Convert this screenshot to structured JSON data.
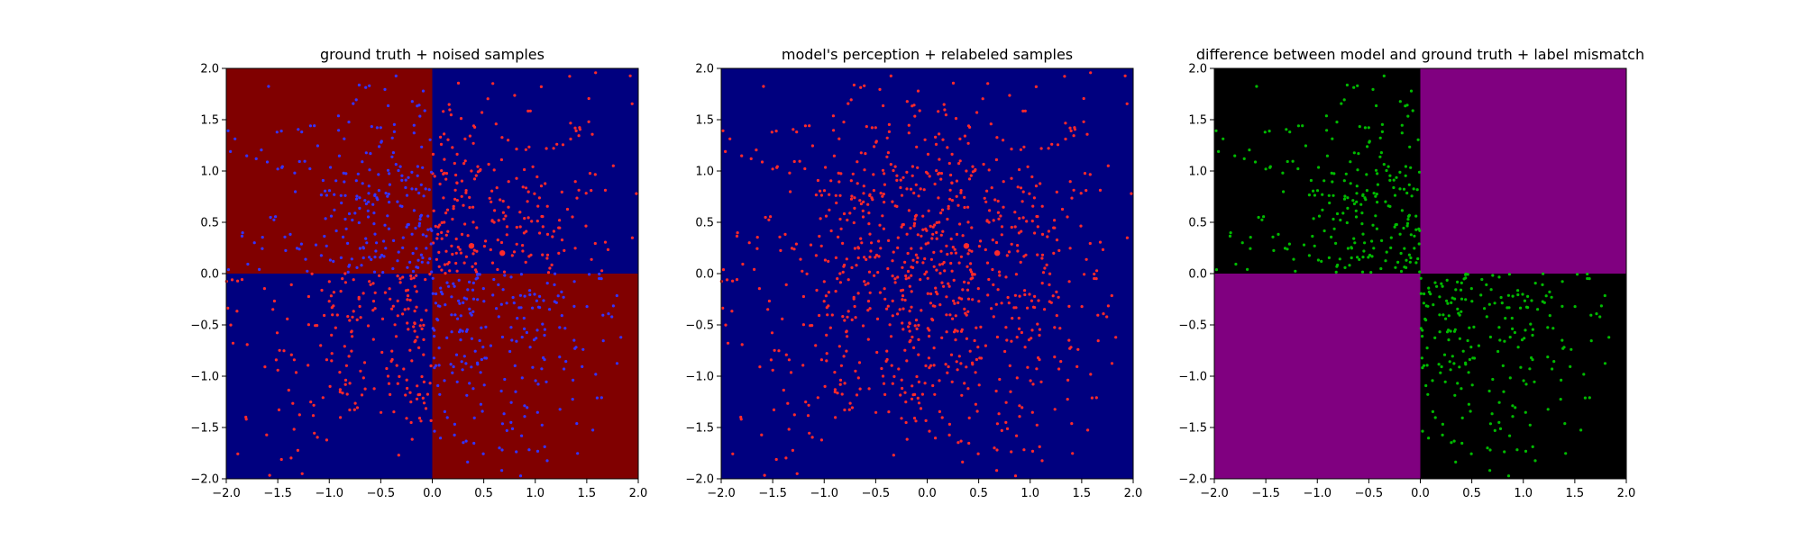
{
  "chart_data": [
    {
      "type": "heatmap",
      "title": "ground truth + noised samples",
      "xlim": [
        -2.0,
        2.0
      ],
      "ylim": [
        -2.0,
        2.0
      ],
      "xticks": [
        "−2.0",
        "−1.5",
        "−1.0",
        "−0.5",
        "0.0",
        "0.5",
        "1.0",
        "1.5",
        "2.0"
      ],
      "yticks": [
        "−2.0",
        "−1.5",
        "−1.0",
        "−0.5",
        "0.0",
        "0.5",
        "1.0",
        "1.5",
        "2.0"
      ],
      "regions": [
        {
          "x": [
            -2.0,
            0.0
          ],
          "y": [
            0.0,
            2.0
          ],
          "color": "#800000"
        },
        {
          "x": [
            0.0,
            2.0
          ],
          "y": [
            0.0,
            2.0
          ],
          "color": "#00007f"
        },
        {
          "x": [
            -2.0,
            0.0
          ],
          "y": [
            -2.0,
            0.0
          ],
          "color": "#00007f"
        },
        {
          "x": [
            0.0,
            2.0
          ],
          "y": [
            -2.0,
            0.0
          ],
          "color": "#800000"
        }
      ],
      "series": [
        {
          "marker_color": "#ff2a2a",
          "color_rule": "sign of x·y: red where positive (upper-right and lower-left quadrants)"
        },
        {
          "marker_color": "#3434ff",
          "color_rule": "sign of x·y: blue where negative (upper-left and lower-right quadrants)"
        }
      ],
      "highlighted_points": [
        {
          "x": 0.38,
          "y": 0.27
        },
        {
          "x": 0.68,
          "y": 0.2
        }
      ],
      "grid": false
    },
    {
      "type": "heatmap",
      "title": "model's perception + relabeled samples",
      "xlim": [
        -2.0,
        2.0
      ],
      "ylim": [
        -2.0,
        2.0
      ],
      "xticks": [
        "−2.0",
        "−1.5",
        "−1.0",
        "−0.5",
        "0.0",
        "0.5",
        "1.0",
        "1.5",
        "2.0"
      ],
      "yticks": [
        "−2.0",
        "−1.5",
        "−1.0",
        "−0.5",
        "0.0",
        "0.5",
        "1.0",
        "1.5",
        "2.0"
      ],
      "regions": [
        {
          "x": [
            -2.0,
            2.0
          ],
          "y": [
            -2.0,
            2.0
          ],
          "color": "#00007f"
        }
      ],
      "series": [
        {
          "marker_color": "#ff2a2a",
          "color_rule": "all samples red"
        }
      ],
      "highlighted_points": [
        {
          "x": 0.38,
          "y": 0.27
        },
        {
          "x": 0.68,
          "y": 0.2
        }
      ],
      "grid": false
    },
    {
      "type": "heatmap",
      "title": "difference between model and ground truth + label mismatch",
      "xlim": [
        -2.0,
        2.0
      ],
      "ylim": [
        -2.0,
        2.0
      ],
      "xticks": [
        "−2.0",
        "−1.5",
        "−1.0",
        "−0.5",
        "0.0",
        "0.5",
        "1.0",
        "1.5",
        "2.0"
      ],
      "yticks": [
        "−2.0",
        "−1.5",
        "−1.0",
        "−0.5",
        "0.0",
        "0.5",
        "1.0",
        "1.5",
        "2.0"
      ],
      "regions": [
        {
          "x": [
            -2.0,
            0.0
          ],
          "y": [
            0.0,
            2.0
          ],
          "color": "#000000"
        },
        {
          "x": [
            0.0,
            2.0
          ],
          "y": [
            0.0,
            2.0
          ],
          "color": "#800080"
        },
        {
          "x": [
            -2.0,
            0.0
          ],
          "y": [
            -2.0,
            0.0
          ],
          "color": "#800080"
        },
        {
          "x": [
            0.0,
            2.0
          ],
          "y": [
            -2.0,
            0.0
          ],
          "color": "#000000"
        }
      ],
      "series": [
        {
          "marker_color": "#00bb00",
          "color_rule": "green markers only where x·y is negative (upper-left and lower-right quadrants)"
        }
      ],
      "grid": false
    }
  ]
}
